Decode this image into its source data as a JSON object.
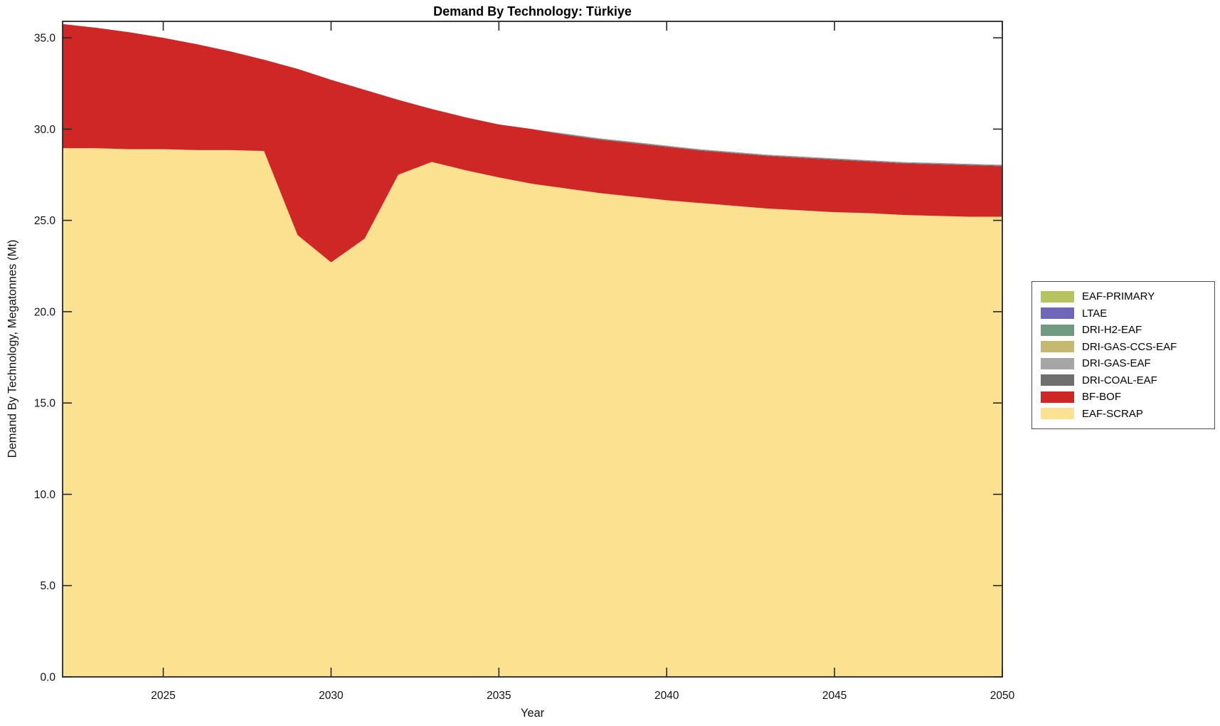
{
  "title": "Demand By Technology: Türkiye",
  "xlabel": "Year",
  "ylabel": "Demand By Technology, Megatonnes (Mt)",
  "chart_data": {
    "type": "area",
    "stacked": true,
    "title": "Demand By Technology: Türkiye",
    "xlabel": "Year",
    "ylabel": "Demand By Technology, Megatonnes (Mt)",
    "xlim": [
      2022,
      2050
    ],
    "ylim": [
      0,
      35.9
    ],
    "xticks": [
      2025,
      2030,
      2035,
      2040,
      2045,
      2050
    ],
    "yticks": [
      0.0,
      5.0,
      10.0,
      15.0,
      20.0,
      25.0,
      30.0,
      35.0
    ],
    "grid": false,
    "legend_position": "outside-right",
    "x": [
      2022,
      2023,
      2024,
      2025,
      2026,
      2027,
      2028,
      2029,
      2030,
      2031,
      2032,
      2033,
      2034,
      2035,
      2036,
      2037,
      2038,
      2039,
      2040,
      2041,
      2042,
      2043,
      2044,
      2045,
      2046,
      2047,
      2048,
      2049,
      2050
    ],
    "series": [
      {
        "name": "EAF-SCRAP",
        "color": "#fbe190",
        "values": [
          28.95,
          28.95,
          28.9,
          28.9,
          28.85,
          28.85,
          28.8,
          24.2,
          22.7,
          24.0,
          27.5,
          28.2,
          27.75,
          27.35,
          27.0,
          26.75,
          26.5,
          26.3,
          26.1,
          25.95,
          25.8,
          25.65,
          25.55,
          25.45,
          25.4,
          25.3,
          25.25,
          25.2,
          25.2
        ]
      },
      {
        "name": "BF-BOF",
        "color": "#cf2726",
        "values": [
          6.8,
          6.6,
          6.4,
          6.1,
          5.8,
          5.4,
          5.0,
          9.1,
          10.0,
          8.15,
          4.1,
          2.9,
          2.9,
          2.9,
          3.0,
          2.92,
          2.92,
          2.92,
          2.92,
          2.87,
          2.87,
          2.87,
          2.87,
          2.87,
          2.82,
          2.82,
          2.82,
          2.82,
          2.77
        ]
      },
      {
        "name": "DRI-COAL-EAF",
        "color": "#6f6f6f",
        "values": [
          0,
          0,
          0,
          0,
          0,
          0,
          0,
          0,
          0,
          0,
          0,
          0,
          0,
          0,
          0,
          0.04,
          0.04,
          0.04,
          0.04,
          0.04,
          0.04,
          0.04,
          0.04,
          0.04,
          0.04,
          0.04,
          0.04,
          0.04,
          0.04
        ]
      },
      {
        "name": "DRI-GAS-EAF",
        "color": "#a6a6a6",
        "values": [
          0,
          0,
          0,
          0,
          0,
          0,
          0,
          0,
          0,
          0,
          0,
          0,
          0,
          0,
          0,
          0.04,
          0.04,
          0.04,
          0.04,
          0.04,
          0.04,
          0.04,
          0.04,
          0.04,
          0.04,
          0.04,
          0.04,
          0.04,
          0.04
        ]
      },
      {
        "name": "DRI-GAS-CCS-EAF",
        "color": "#c5b96f",
        "values": [
          0,
          0,
          0,
          0,
          0,
          0,
          0,
          0,
          0,
          0,
          0,
          0,
          0,
          0,
          0,
          0,
          0,
          0,
          0,
          0,
          0,
          0,
          0,
          0,
          0,
          0,
          0,
          0,
          0
        ]
      },
      {
        "name": "DRI-H2-EAF",
        "color": "#6f9b81",
        "values": [
          0,
          0,
          0,
          0,
          0,
          0,
          0,
          0,
          0,
          0,
          0,
          0,
          0,
          0,
          0,
          0,
          0,
          0,
          0,
          0,
          0,
          0,
          0,
          0,
          0,
          0,
          0,
          0,
          0
        ]
      },
      {
        "name": "LTAE",
        "color": "#7167b8",
        "values": [
          0,
          0,
          0,
          0,
          0,
          0,
          0,
          0,
          0,
          0,
          0,
          0,
          0,
          0,
          0,
          0,
          0,
          0,
          0,
          0,
          0,
          0,
          0,
          0,
          0,
          0,
          0,
          0,
          0
        ]
      },
      {
        "name": "EAF-PRIMARY",
        "color": "#b5c45f",
        "values": [
          0,
          0,
          0,
          0,
          0,
          0,
          0,
          0,
          0,
          0,
          0,
          0,
          0,
          0,
          0,
          0,
          0,
          0,
          0,
          0,
          0,
          0,
          0,
          0,
          0,
          0,
          0,
          0,
          0
        ]
      }
    ]
  }
}
